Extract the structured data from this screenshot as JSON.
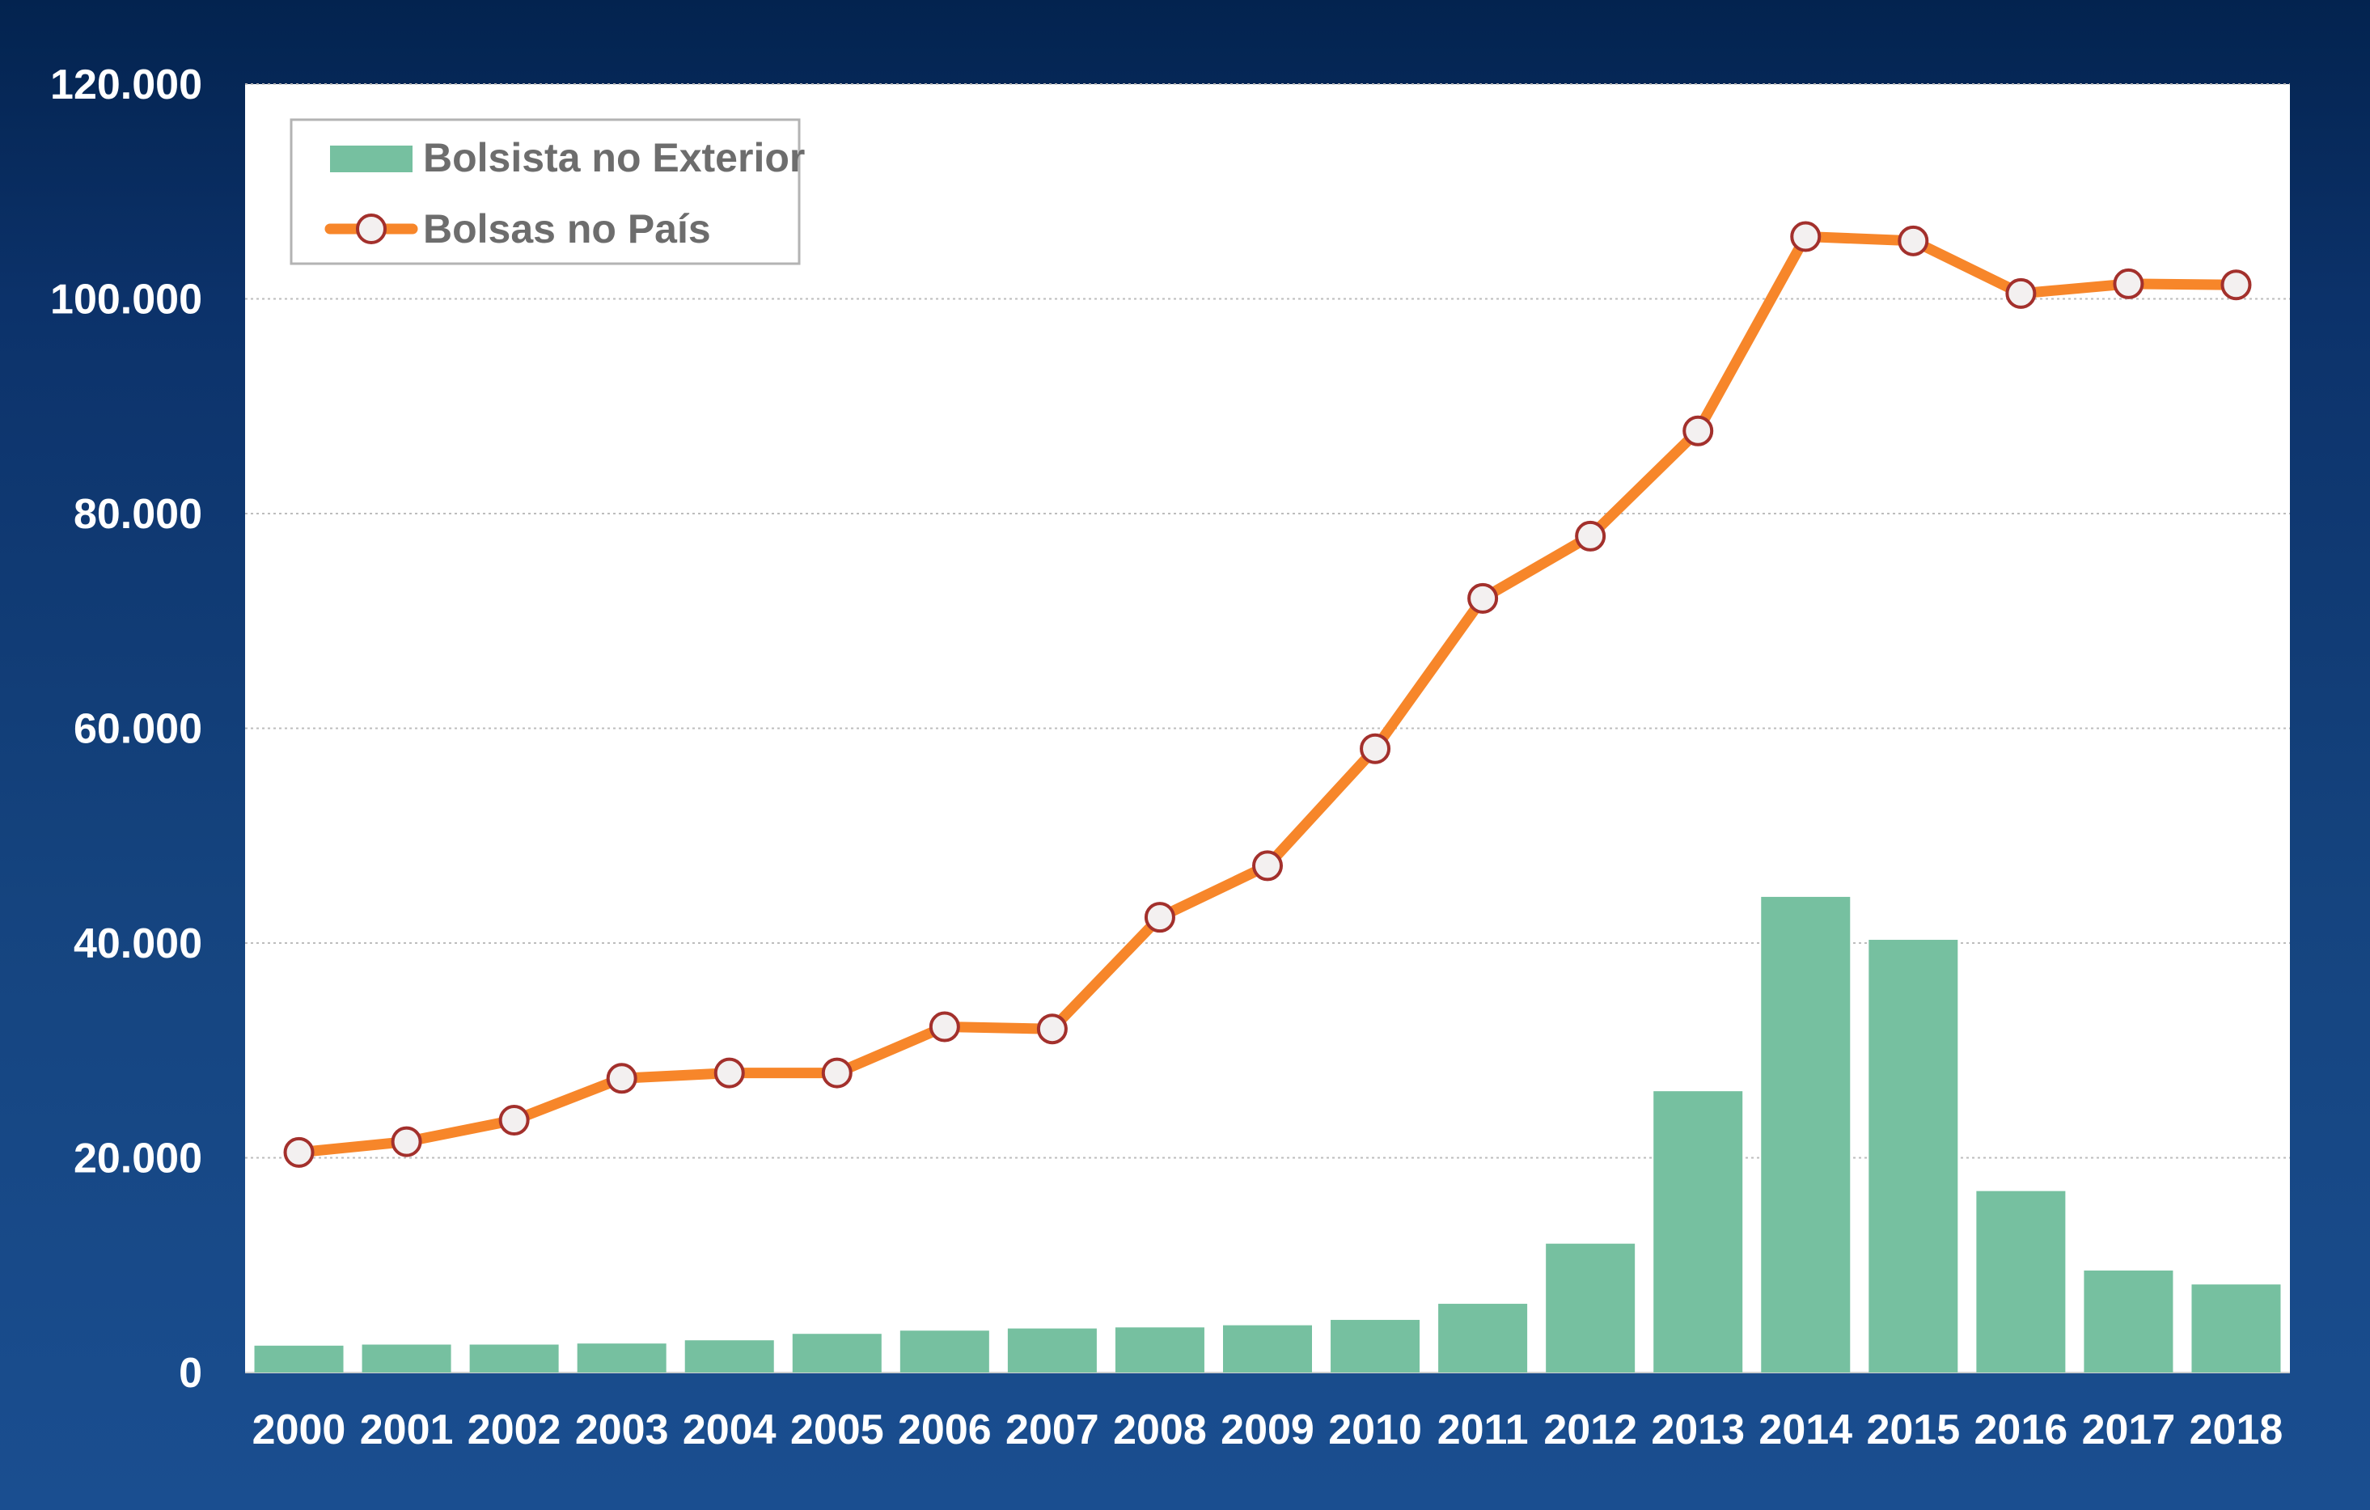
{
  "colors": {
    "bar": "#76c0a0",
    "line": "#f7862a",
    "marker_fill": "#f3f0f0",
    "marker_stroke": "#a3302c",
    "plot_bg": "#ffffff",
    "grid": "#bdbdbd",
    "tick_text": "#ffffff",
    "legend_text": "#6d6d6d"
  },
  "chart_data": {
    "type": "bar",
    "combo": "bar+line",
    "title": "",
    "xlabel": "",
    "ylabel": "",
    "categories": [
      "2000",
      "2001",
      "2002",
      "2003",
      "2004",
      "2005",
      "2006",
      "2007",
      "2008",
      "2009",
      "2010",
      "2011",
      "2012",
      "2013",
      "2014",
      "2015",
      "2016",
      "2017",
      "2018"
    ],
    "ylim": [
      0,
      120000
    ],
    "yticks": [
      0,
      20000,
      40000,
      60000,
      80000,
      100000,
      120000
    ],
    "ytick_labels": [
      "0",
      "20.000",
      "40.000",
      "60.000",
      "80.000",
      "100.000",
      "120.000"
    ],
    "grid": "horizontal dotted",
    "legend_position": "top-left",
    "series": [
      {
        "name": "Bolsista no Exterior",
        "type": "bar",
        "values": [
          2500,
          2600,
          2600,
          2700,
          3000,
          3600,
          3900,
          4100,
          4200,
          4400,
          4900,
          6400,
          12000,
          26200,
          44300,
          40300,
          16900,
          9500,
          8200
        ]
      },
      {
        "name": "Bolsas no País",
        "type": "line",
        "marker": "circle",
        "values": [
          20500,
          21500,
          23500,
          27400,
          27900,
          27900,
          32200,
          32000,
          42400,
          47200,
          58100,
          72100,
          77900,
          87700,
          105800,
          105400,
          100500,
          101400,
          101300
        ]
      }
    ]
  }
}
